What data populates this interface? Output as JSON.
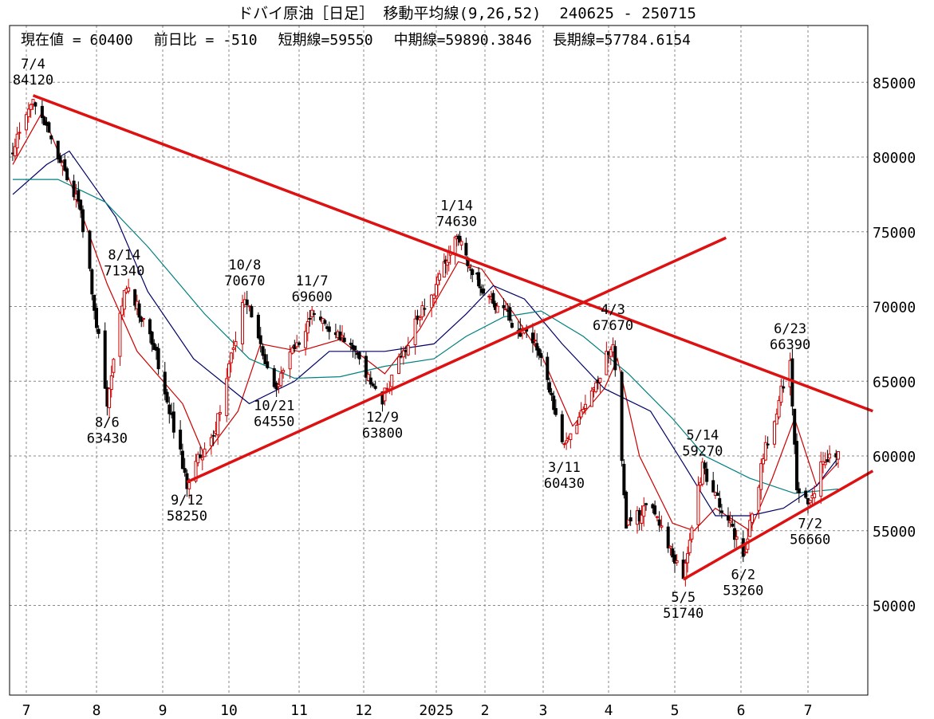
{
  "header": {
    "title": "ドバイ原油［日足］ 移動平均線(9,26,52)  240625 - 250715",
    "current_value": "現在値 = 60400",
    "change": "前日比 = -510",
    "short_ma": "短期線=59550",
    "mid_ma": "中期線=59890.3846",
    "long_ma": "長期線=57784.6154"
  },
  "chart_data": {
    "type": "candlestick",
    "title": "ドバイ原油［日足］ 移動平均線(9,26,52)  240625 - 250715",
    "period": [
      "240625",
      "250715"
    ],
    "ylim": [
      44000,
      88800
    ],
    "y_ticks": [
      50000,
      55000,
      60000,
      65000,
      70000,
      75000,
      80000,
      85000
    ],
    "grid": true,
    "x_month_labels": [
      "7",
      "8",
      "9",
      "10",
      "11",
      "12",
      "2025",
      "2",
      "3",
      "4",
      "5",
      "6",
      "7"
    ],
    "x_month_start_dates": [
      "2024-07-01",
      "2024-08-01",
      "2024-09-01",
      "2024-10-01",
      "2024-11-01",
      "2024-12-01",
      "2025-01-01",
      "2025-02-01",
      "2025-03-01",
      "2025-04-01",
      "2025-05-01",
      "2025-06-01",
      "2025-07-01"
    ],
    "key_close_points": [
      {
        "date": "2024-06-25",
        "value": 80500
      },
      {
        "date": "2024-07-04",
        "value": 84120
      },
      {
        "date": "2024-07-15",
        "value": 80000
      },
      {
        "date": "2024-07-25",
        "value": 76500
      },
      {
        "date": "2024-08-06",
        "value": 63430
      },
      {
        "date": "2024-08-14",
        "value": 71340
      },
      {
        "date": "2024-08-26",
        "value": 68500
      },
      {
        "date": "2024-09-12",
        "value": 58250
      },
      {
        "date": "2024-09-25",
        "value": 62000
      },
      {
        "date": "2024-10-08",
        "value": 70670
      },
      {
        "date": "2024-10-21",
        "value": 64550
      },
      {
        "date": "2024-11-07",
        "value": 69600
      },
      {
        "date": "2024-11-25",
        "value": 67500
      },
      {
        "date": "2024-12-09",
        "value": 63800
      },
      {
        "date": "2024-12-25",
        "value": 69500
      },
      {
        "date": "2025-01-14",
        "value": 74630
      },
      {
        "date": "2025-01-28",
        "value": 71500
      },
      {
        "date": "2025-02-14",
        "value": 69000
      },
      {
        "date": "2025-02-28",
        "value": 67000
      },
      {
        "date": "2025-03-11",
        "value": 60430
      },
      {
        "date": "2025-03-25",
        "value": 64500
      },
      {
        "date": "2025-04-03",
        "value": 67670
      },
      {
        "date": "2025-04-09",
        "value": 55500
      },
      {
        "date": "2025-04-20",
        "value": 56500
      },
      {
        "date": "2025-05-05",
        "value": 51740
      },
      {
        "date": "2025-05-14",
        "value": 59270
      },
      {
        "date": "2025-05-25",
        "value": 56000
      },
      {
        "date": "2025-06-02",
        "value": 53260
      },
      {
        "date": "2025-06-12",
        "value": 60500
      },
      {
        "date": "2025-06-23",
        "value": 66390
      },
      {
        "date": "2025-06-26",
        "value": 58000
      },
      {
        "date": "2025-07-02",
        "value": 56660
      },
      {
        "date": "2025-07-08",
        "value": 59800
      },
      {
        "date": "2025-07-15",
        "value": 60400
      }
    ],
    "moving_averages": [
      {
        "name": "短期線",
        "period": 9,
        "color": "#cc0000",
        "points": [
          [
            "2024-06-25",
            79500
          ],
          [
            "2024-07-08",
            83000
          ],
          [
            "2024-07-20",
            78500
          ],
          [
            "2024-08-06",
            71500
          ],
          [
            "2024-08-20",
            67000
          ],
          [
            "2024-09-10",
            63500
          ],
          [
            "2024-09-20",
            60000
          ],
          [
            "2024-10-05",
            63000
          ],
          [
            "2024-10-15",
            67500
          ],
          [
            "2024-11-01",
            67000
          ],
          [
            "2024-11-20",
            67800
          ],
          [
            "2024-12-10",
            65500
          ],
          [
            "2024-12-25",
            68500
          ],
          [
            "2025-01-15",
            73000
          ],
          [
            "2025-01-30",
            72500
          ],
          [
            "2025-02-15",
            69500
          ],
          [
            "2025-03-01",
            66500
          ],
          [
            "2025-03-15",
            62000
          ],
          [
            "2025-03-30",
            64500
          ],
          [
            "2025-04-05",
            66500
          ],
          [
            "2025-04-15",
            60000
          ],
          [
            "2025-04-30",
            55500
          ],
          [
            "2025-05-10",
            55000
          ],
          [
            "2025-05-20",
            56500
          ],
          [
            "2025-06-05",
            55000
          ],
          [
            "2025-06-15",
            58500
          ],
          [
            "2025-06-25",
            62500
          ],
          [
            "2025-07-05",
            58000
          ],
          [
            "2025-07-15",
            59550
          ]
        ]
      },
      {
        "name": "中期線",
        "period": 26,
        "color": "#000066",
        "points": [
          [
            "2024-06-25",
            77500
          ],
          [
            "2024-07-10",
            79500
          ],
          [
            "2024-07-20",
            80400
          ],
          [
            "2024-08-10",
            76000
          ],
          [
            "2024-08-25",
            71000
          ],
          [
            "2024-09-15",
            66500
          ],
          [
            "2024-10-10",
            63500
          ],
          [
            "2024-10-30",
            65000
          ],
          [
            "2024-11-15",
            67000
          ],
          [
            "2024-12-10",
            67000
          ],
          [
            "2024-12-31",
            67500
          ],
          [
            "2025-01-20",
            69500
          ],
          [
            "2025-02-05",
            71400
          ],
          [
            "2025-02-20",
            70500
          ],
          [
            "2025-03-10",
            67500
          ],
          [
            "2025-03-30",
            64500
          ],
          [
            "2025-04-20",
            63000
          ],
          [
            "2025-05-05",
            59500
          ],
          [
            "2025-05-20",
            56000
          ],
          [
            "2025-06-05",
            56000
          ],
          [
            "2025-06-20",
            56500
          ],
          [
            "2025-07-05",
            58000
          ],
          [
            "2025-07-15",
            59890
          ]
        ]
      },
      {
        "name": "長期線",
        "period": 52,
        "color": "#008080",
        "points": [
          [
            "2024-06-25",
            78500
          ],
          [
            "2024-07-15",
            78500
          ],
          [
            "2024-08-05",
            77000
          ],
          [
            "2024-08-25",
            74000
          ],
          [
            "2024-09-20",
            69500
          ],
          [
            "2024-10-10",
            66500
          ],
          [
            "2024-10-30",
            65200
          ],
          [
            "2024-11-20",
            65300
          ],
          [
            "2024-12-10",
            66000
          ],
          [
            "2024-12-31",
            66500
          ],
          [
            "2025-01-20",
            68000
          ],
          [
            "2025-02-10",
            69300
          ],
          [
            "2025-02-28",
            69700
          ],
          [
            "2025-03-20",
            68000
          ],
          [
            "2025-04-10",
            65500
          ],
          [
            "2025-04-30",
            62500
          ],
          [
            "2025-05-15",
            60000
          ],
          [
            "2025-06-05",
            58500
          ],
          [
            "2025-06-25",
            57500
          ],
          [
            "2025-07-15",
            57784
          ]
        ]
      }
    ],
    "trendlines": [
      {
        "from": [
          "2024-07-04",
          84120
        ],
        "to": [
          "2025-07-31",
          63000
        ]
      },
      {
        "from": [
          "2024-09-12",
          58250
        ],
        "to": [
          "2025-05-25",
          74600
        ]
      },
      {
        "from": [
          "2025-05-05",
          51740
        ],
        "to": [
          "2025-07-31",
          59000
        ]
      }
    ],
    "annotations": [
      {
        "date": "7/4",
        "value": "84120",
        "at": [
          "2024-07-04",
          84120
        ],
        "pos": "above"
      },
      {
        "date": "8/14",
        "value": "71340",
        "at": [
          "2024-08-14",
          71340
        ],
        "pos": "above"
      },
      {
        "date": "8/6",
        "value": "63430",
        "at": [
          "2024-08-06",
          63430
        ],
        "pos": "below"
      },
      {
        "date": "9/12",
        "value": "58250",
        "at": [
          "2024-09-12",
          58250
        ],
        "pos": "below"
      },
      {
        "date": "10/8",
        "value": "70670",
        "at": [
          "2024-10-08",
          70670
        ],
        "pos": "above"
      },
      {
        "date": "10/21",
        "value": "64550",
        "at": [
          "2024-10-21",
          64550
        ],
        "pos": "below"
      },
      {
        "date": "11/7",
        "value": "69600",
        "at": [
          "2024-11-07",
          69600
        ],
        "pos": "above"
      },
      {
        "date": "12/9",
        "value": "63800",
        "at": [
          "2024-12-09",
          63800
        ],
        "pos": "below"
      },
      {
        "date": "1/14",
        "value": "74630",
        "at": [
          "2025-01-14",
          74630
        ],
        "pos": "above"
      },
      {
        "date": "3/11",
        "value": "60430",
        "at": [
          "2025-03-11",
          60430
        ],
        "pos": "below"
      },
      {
        "date": "4/3",
        "value": "67670",
        "at": [
          "2025-04-03",
          67670
        ],
        "pos": "above"
      },
      {
        "date": "5/14",
        "value": "59270",
        "at": [
          "2025-05-14",
          59270
        ],
        "pos": "above"
      },
      {
        "date": "5/5",
        "value": "51740",
        "at": [
          "2025-05-05",
          51740
        ],
        "pos": "below"
      },
      {
        "date": "6/2",
        "value": "53260",
        "at": [
          "2025-06-02",
          53260
        ],
        "pos": "below"
      },
      {
        "date": "6/23",
        "value": "66390",
        "at": [
          "2025-06-23",
          66390
        ],
        "pos": "above"
      },
      {
        "date": "7/2",
        "value": "56660",
        "at": [
          "2025-07-02",
          56660
        ],
        "pos": "below"
      }
    ],
    "colors": {
      "up": "#cc0000",
      "down": "#000000",
      "trendline": "#dd1111",
      "grid": "#888888"
    }
  }
}
